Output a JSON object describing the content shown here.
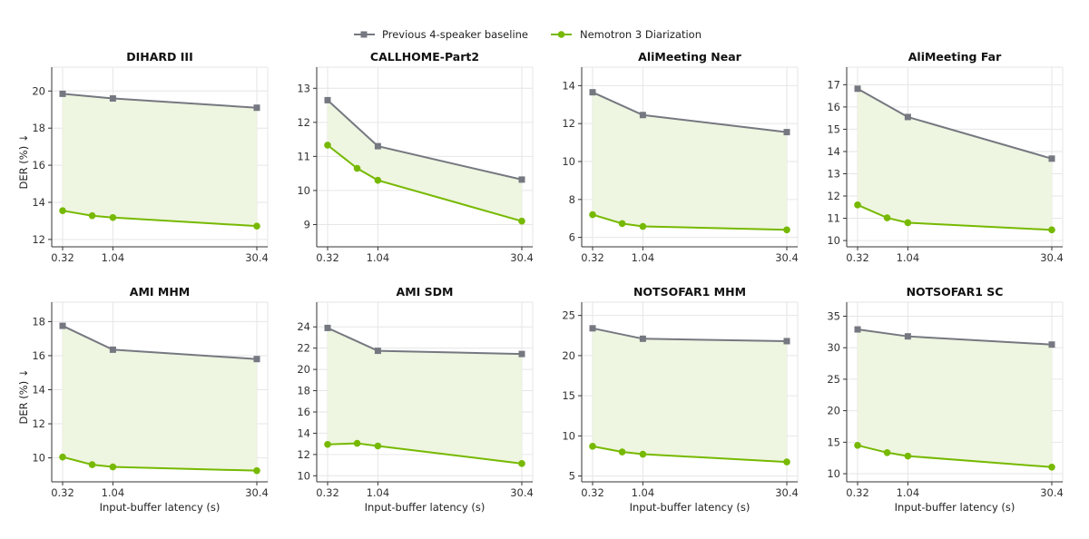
{
  "legend": {
    "placement": "top-center",
    "entries": [
      {
        "label": "Previous 4-speaker baseline",
        "color": "#757880",
        "marker": "square"
      },
      {
        "label": "Nemotron 3 Diarization",
        "color": "#76b900",
        "marker": "circle"
      }
    ]
  },
  "colors": {
    "baseline": "#757880",
    "nemotron": "#76b900",
    "fill": "#eef5e0",
    "grid": "#e6e6e6",
    "axis": "#333333"
  },
  "chart_data": [
    {
      "type": "line",
      "title": "DIHARD III",
      "ylabel": "DER (%) ↓",
      "xlabel": "",
      "xticks": [
        "0.32",
        "1.04",
        "30.4"
      ],
      "yticks": [
        12,
        14,
        16,
        18,
        20
      ],
      "ylim": [
        11.7,
        20.7
      ],
      "grid": true,
      "series": [
        {
          "name": "Previous 4-speaker baseline",
          "x": [
            0.32,
            1.04,
            30.4
          ],
          "y": [
            19.85,
            19.6,
            19.1
          ]
        },
        {
          "name": "Nemotron 3 Diarization",
          "x": [
            0.32,
            0.64,
            1.04,
            30.4
          ],
          "y": [
            13.55,
            13.28,
            13.18,
            12.72
          ]
        }
      ]
    },
    {
      "type": "line",
      "title": "CALLHOME-Part2",
      "ylabel": "",
      "xlabel": "",
      "xticks": [
        "0.32",
        "1.04",
        "30.4"
      ],
      "yticks": [
        9,
        10,
        11,
        12,
        13
      ],
      "ylim": [
        8.4,
        13.3
      ],
      "grid": true,
      "series": [
        {
          "name": "Previous 4-speaker baseline",
          "x": [
            0.32,
            1.04,
            30.4
          ],
          "y": [
            12.65,
            11.3,
            10.32
          ]
        },
        {
          "name": "Nemotron 3 Diarization",
          "x": [
            0.32,
            0.64,
            1.04,
            30.4
          ],
          "y": [
            11.33,
            10.65,
            10.3,
            9.1
          ]
        }
      ]
    },
    {
      "type": "line",
      "title": "AliMeeting Near",
      "ylabel": "",
      "xlabel": "",
      "xticks": [
        "0.32",
        "1.04",
        "30.4"
      ],
      "yticks": [
        6,
        8,
        10,
        12,
        14
      ],
      "ylim": [
        5.6,
        14.4
      ],
      "grid": true,
      "series": [
        {
          "name": "Previous 4-speaker baseline",
          "x": [
            0.32,
            1.04,
            30.4
          ],
          "y": [
            13.65,
            12.45,
            11.55
          ]
        },
        {
          "name": "Nemotron 3 Diarization",
          "x": [
            0.32,
            0.64,
            1.04,
            30.4
          ],
          "y": [
            7.2,
            6.73,
            6.58,
            6.4
          ]
        }
      ]
    },
    {
      "type": "line",
      "title": "AliMeeting Far",
      "ylabel": "",
      "xlabel": "",
      "xticks": [
        "0.32",
        "1.04",
        "30.4"
      ],
      "yticks": [
        10,
        11,
        12,
        13,
        14,
        15,
        16,
        17
      ],
      "ylim": [
        9.8,
        17.3
      ],
      "grid": true,
      "series": [
        {
          "name": "Previous 4-speaker baseline",
          "x": [
            0.32,
            1.04,
            30.4
          ],
          "y": [
            16.82,
            15.55,
            13.68
          ]
        },
        {
          "name": "Nemotron 3 Diarization",
          "x": [
            0.32,
            0.64,
            1.04,
            30.4
          ],
          "y": [
            11.6,
            11.02,
            10.8,
            10.48
          ]
        }
      ]
    },
    {
      "type": "line",
      "title": "AMI MHM",
      "ylabel": "DER (%) ↓",
      "xlabel": "Input-buffer latency (s)",
      "xticks": [
        "0.32",
        "1.04",
        "30.4"
      ],
      "yticks": [
        10,
        12,
        14,
        16,
        18
      ],
      "ylim": [
        8.7,
        18.5
      ],
      "grid": true,
      "series": [
        {
          "name": "Previous 4-speaker baseline",
          "x": [
            0.32,
            1.04,
            30.4
          ],
          "y": [
            17.75,
            16.35,
            15.8
          ]
        },
        {
          "name": "Nemotron 3 Diarization",
          "x": [
            0.32,
            0.64,
            1.04,
            30.4
          ],
          "y": [
            10.05,
            9.6,
            9.47,
            9.25
          ]
        }
      ]
    },
    {
      "type": "line",
      "title": "AMI SDM",
      "ylabel": "",
      "xlabel": "Input-buffer latency (s)",
      "xticks": [
        "0.32",
        "1.04",
        "30.4"
      ],
      "yticks": [
        10,
        12,
        14,
        16,
        18,
        20,
        22,
        24
      ],
      "ylim": [
        9.6,
        25.3
      ],
      "grid": true,
      "series": [
        {
          "name": "Previous 4-speaker baseline",
          "x": [
            0.32,
            1.04,
            30.4
          ],
          "y": [
            23.9,
            21.75,
            21.45
          ]
        },
        {
          "name": "Nemotron 3 Diarization",
          "x": [
            0.32,
            0.64,
            1.04,
            30.4
          ],
          "y": [
            12.95,
            13.05,
            12.8,
            11.15
          ]
        }
      ]
    },
    {
      "type": "line",
      "title": "NOTSOFAR1 MHM",
      "ylabel": "",
      "xlabel": "Input-buffer latency (s)",
      "xticks": [
        "0.32",
        "1.04",
        "30.4"
      ],
      "yticks": [
        5,
        10,
        15,
        20,
        25
      ],
      "ylim": [
        4.5,
        25.3
      ],
      "grid": true,
      "series": [
        {
          "name": "Previous 4-speaker baseline",
          "x": [
            0.32,
            1.04,
            30.4
          ],
          "y": [
            23.4,
            22.1,
            21.8
          ]
        },
        {
          "name": "Nemotron 3 Diarization",
          "x": [
            0.32,
            0.64,
            1.04,
            30.4
          ],
          "y": [
            8.7,
            8.0,
            7.72,
            6.75
          ]
        }
      ]
    },
    {
      "type": "line",
      "title": "NOTSOFAR1 SC",
      "ylabel": "",
      "xlabel": "Input-buffer latency (s)",
      "xticks": [
        "0.32",
        "1.04",
        "30.4"
      ],
      "yticks": [
        10,
        15,
        20,
        25,
        30,
        35
      ],
      "ylim": [
        9.0,
        35.5
      ],
      "grid": true,
      "series": [
        {
          "name": "Previous 4-speaker baseline",
          "x": [
            0.32,
            1.04,
            30.4
          ],
          "y": [
            32.9,
            31.8,
            30.5
          ]
        },
        {
          "name": "Nemotron 3 Diarization",
          "x": [
            0.32,
            0.64,
            1.04,
            30.4
          ],
          "y": [
            14.5,
            13.35,
            12.8,
            11.05
          ]
        }
      ]
    }
  ]
}
